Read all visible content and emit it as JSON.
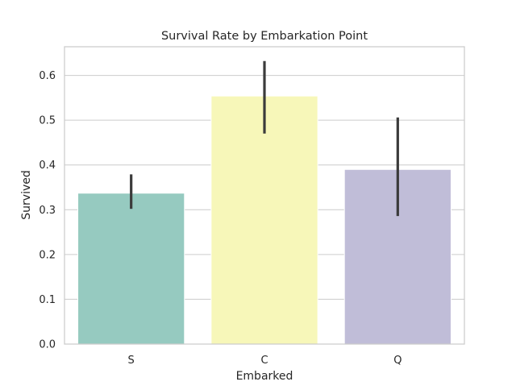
{
  "chart_data": {
    "type": "bar",
    "title": "Survival Rate by Embarkation Point",
    "xlabel": "Embarked",
    "ylabel": "Survived",
    "categories": [
      "S",
      "C",
      "Q"
    ],
    "values": [
      0.337,
      0.554,
      0.39
    ],
    "error_bars": [
      {
        "low": 0.302,
        "high": 0.379
      },
      {
        "low": 0.47,
        "high": 0.632
      },
      {
        "low": 0.286,
        "high": 0.506
      }
    ],
    "colors": [
      "#96cac0",
      "#f7f7b9",
      "#c0bdd8"
    ],
    "errorbar_color": "#3b3b3b",
    "ylim": [
      0,
      0.664
    ],
    "yticks": [
      0.0,
      0.1,
      0.2,
      0.3,
      0.4,
      0.5,
      0.6
    ],
    "ytick_labels": [
      "0.0",
      "0.1",
      "0.2",
      "0.3",
      "0.4",
      "0.5",
      "0.6"
    ],
    "grid": "y",
    "grid_color": "#cccccc",
    "spine_color": "#cccccc",
    "legend": "none"
  }
}
